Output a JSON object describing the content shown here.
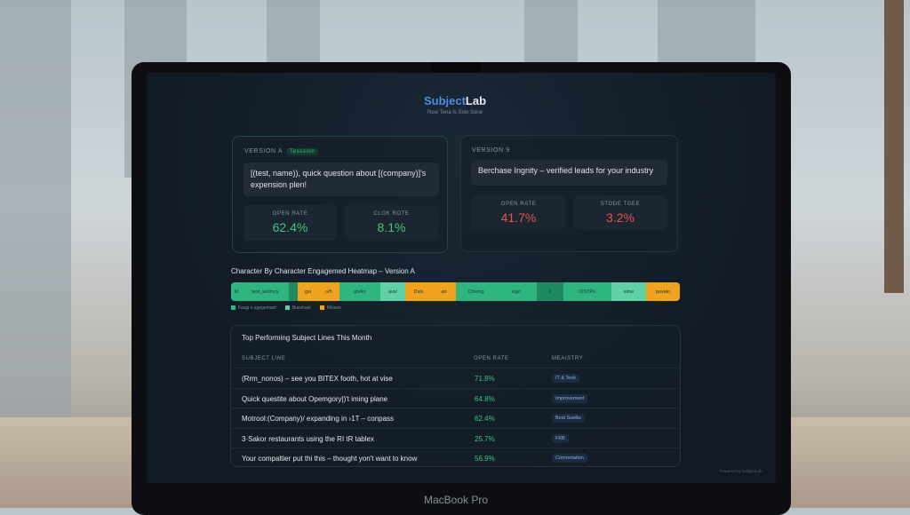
{
  "app": {
    "name_part1": "Subject",
    "name_part2": "Lab",
    "tagline": "Row Tena Is Sow Sone"
  },
  "versions": [
    {
      "label": "VERSION A",
      "badge": "Tesssion",
      "subject": "[(test, name)), quick question about [(company)]'s expension plen!",
      "metrics": [
        {
          "label": "OPEN RATE",
          "value": "62.4%"
        },
        {
          "label": "CLOK ROTE",
          "value": "8.1%"
        }
      ]
    },
    {
      "label": "VERSION 9",
      "subject": "Berchase Ingnity – verified leads for your industry",
      "metrics": [
        {
          "label": "OPEN RATE",
          "value": "41.7%"
        },
        {
          "label": "STODE TGEE",
          "value": "3.2%"
        }
      ]
    }
  ],
  "heatmap": {
    "title": "Character By Character Engagemed Heatmap – Version A",
    "colors": {
      "high": "#2fb57f",
      "dark": "#1f8a60",
      "light": "#5fd1a4",
      "low": "#f0a31e"
    },
    "segments": [
      {
        "text": "b/",
        "level": "high",
        "w": 12
      },
      {
        "text": "test_wolmcy",
        "level": "high",
        "w": 53
      },
      {
        "text": "",
        "level": "dark",
        "w": 10
      },
      {
        "text": "gsi",
        "level": "low",
        "w": 23
      },
      {
        "text": "o/h",
        "level": "low",
        "w": 24
      },
      {
        "text": "gn/kn",
        "level": "high",
        "w": 46
      },
      {
        "text": "avs/",
        "level": "light",
        "w": 28
      },
      {
        "text": "Dsls",
        "level": "low",
        "w": 30
      },
      {
        "text": "arl",
        "level": "low",
        "w": 27
      },
      {
        "text": "Chiving",
        "level": "high",
        "w": 45
      },
      {
        "text": "vlg/r",
        "level": "high",
        "w": 46
      },
      {
        "text": "X",
        "level": "dark",
        "w": 30
      },
      {
        "text": "OSTPs",
        "level": "high",
        "w": 54
      },
      {
        "text": "sime",
        "level": "light",
        "w": 39
      },
      {
        "text": "povelo",
        "level": "low",
        "w": 38
      }
    ],
    "legend": [
      {
        "label": "Fasgi n agegemant",
        "level": "high"
      },
      {
        "label": "Bueshaxt",
        "level": "light"
      },
      {
        "label": "Kilsses",
        "level": "low"
      }
    ]
  },
  "top": {
    "title": "Top Performing Subject Lines This Month",
    "headers": [
      "SUBJECT LINE",
      "OPEN RATE",
      "MEAISTRY"
    ],
    "rows": [
      {
        "subject": "(Rrm_nonos) – see you BITEX footh, hot at vise",
        "rate": "71.8%",
        "industry": "IT & Teok"
      },
      {
        "subject": "Quick questite about Opemgory|)'t iming plane",
        "rate": "64.8%",
        "industry": "Improvement"
      },
      {
        "subject": "Motrool:(Company)/ expanding in ›1T – conpass",
        "rate": "62.4%",
        "industry": "Bost Suelks"
      },
      {
        "subject": "3·Sakor restaurants using the RI tR tablex",
        "rate": "25.7%",
        "industry": "FKB"
      },
      {
        "subject": "Your compaltier put thi this – thought yon't want to know",
        "rate": "56.9%",
        "industry": "Comrertation"
      }
    ]
  },
  "footer": "Powered by SubjectLab",
  "device": "MacBook Pro"
}
